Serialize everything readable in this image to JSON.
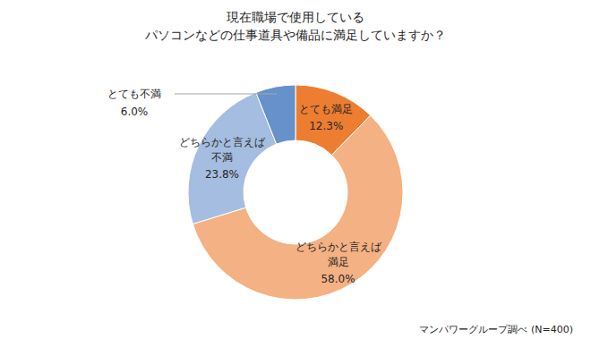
{
  "chart_data": {
    "type": "donut",
    "title": "現在職場で使用している\nパソコンなどの仕事道具や備品に満足していますか？",
    "categories": [
      "とても満足",
      "どちらかと言えば\n満足",
      "どちらかと言えば\n不満",
      "とても不満"
    ],
    "values": [
      12.3,
      58.0,
      23.8,
      6.0
    ],
    "value_labels": [
      "12.3%",
      "58.0%",
      "23.8%",
      "6.0%"
    ],
    "colors": [
      "#ed7d31",
      "#f4b183",
      "#a5bde0",
      "#6691cb"
    ],
    "data_labels": true,
    "source": "マンパワーグループ調べ (N=400)"
  }
}
